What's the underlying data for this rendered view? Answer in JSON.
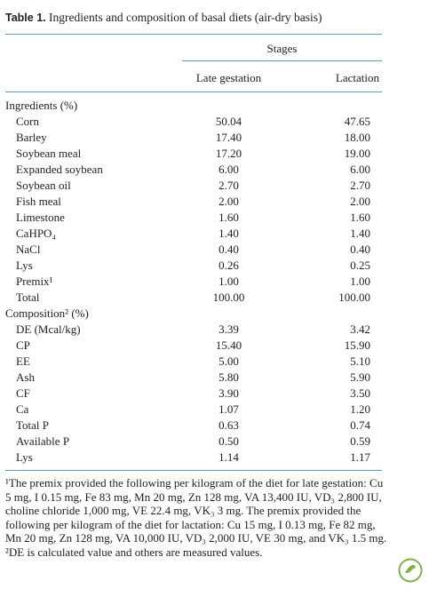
{
  "table": {
    "label": "Table 1.",
    "title": "Ingredients and composition of basal diets (air-dry basis)",
    "group_header": "Stages",
    "columns": [
      "Late gestation",
      "Lactation"
    ],
    "sections": [
      {
        "heading": "Ingredients (%)",
        "rows": [
          [
            "Corn",
            "50.04",
            "47.65"
          ],
          [
            "Barley",
            "17.40",
            "18.00"
          ],
          [
            "Soybean meal",
            "17.20",
            "19.00"
          ],
          [
            "Expanded soybean",
            "6.00",
            "6.00"
          ],
          [
            "Soybean oil",
            "2.70",
            "2.70"
          ],
          [
            "Fish meal",
            "2.00",
            "2.00"
          ],
          [
            "Limestone",
            "1.60",
            "1.60"
          ],
          [
            "CaHPO₄",
            "1.40",
            "1.40"
          ],
          [
            "NaCl",
            "0.40",
            "0.40"
          ],
          [
            "Lys",
            "0.26",
            "0.25"
          ],
          [
            "Premix¹",
            "1.00",
            "1.00"
          ],
          [
            "Total",
            "100.00",
            "100.00"
          ]
        ]
      },
      {
        "heading": "Composition² (%)",
        "rows": [
          [
            "DE (Mcal/kg)",
            "3.39",
            "3.42"
          ],
          [
            "CP",
            "15.40",
            "15.90"
          ],
          [
            "EE",
            "5.00",
            "5.10"
          ],
          [
            "Ash",
            "5.80",
            "5.90"
          ],
          [
            "CF",
            "3.90",
            "3.50"
          ],
          [
            "Ca",
            "1.07",
            "1.20"
          ],
          [
            "Total P",
            "0.63",
            "0.74"
          ],
          [
            "Available P",
            "0.50",
            "0.59"
          ],
          [
            "Lys",
            "1.14",
            "1.17"
          ]
        ]
      }
    ],
    "footnotes": [
      "¹The premix provided the following per kilogram of the diet for late gestation: Cu 5 mg, I 0.15 mg, Fe 83 mg, Mn 20 mg, Zn 128 mg, VA 13,400 IU, VD₃ 2,800 IU, choline chloride 1,000 mg, VE 22.4 mg, VK₃ 3 mg. The premix provided the following per kilogram of the diet for lactation: Cu 15 mg, I 0.13 mg, Fe 82 mg, Mn 20 mg, Zn 128 mg, VA 10,000 IU, VD₃ 2,000 IU, VE 30 mg, and VK₃ 1.5 mg.",
      "²DE is calculated value and others are measured values."
    ]
  }
}
